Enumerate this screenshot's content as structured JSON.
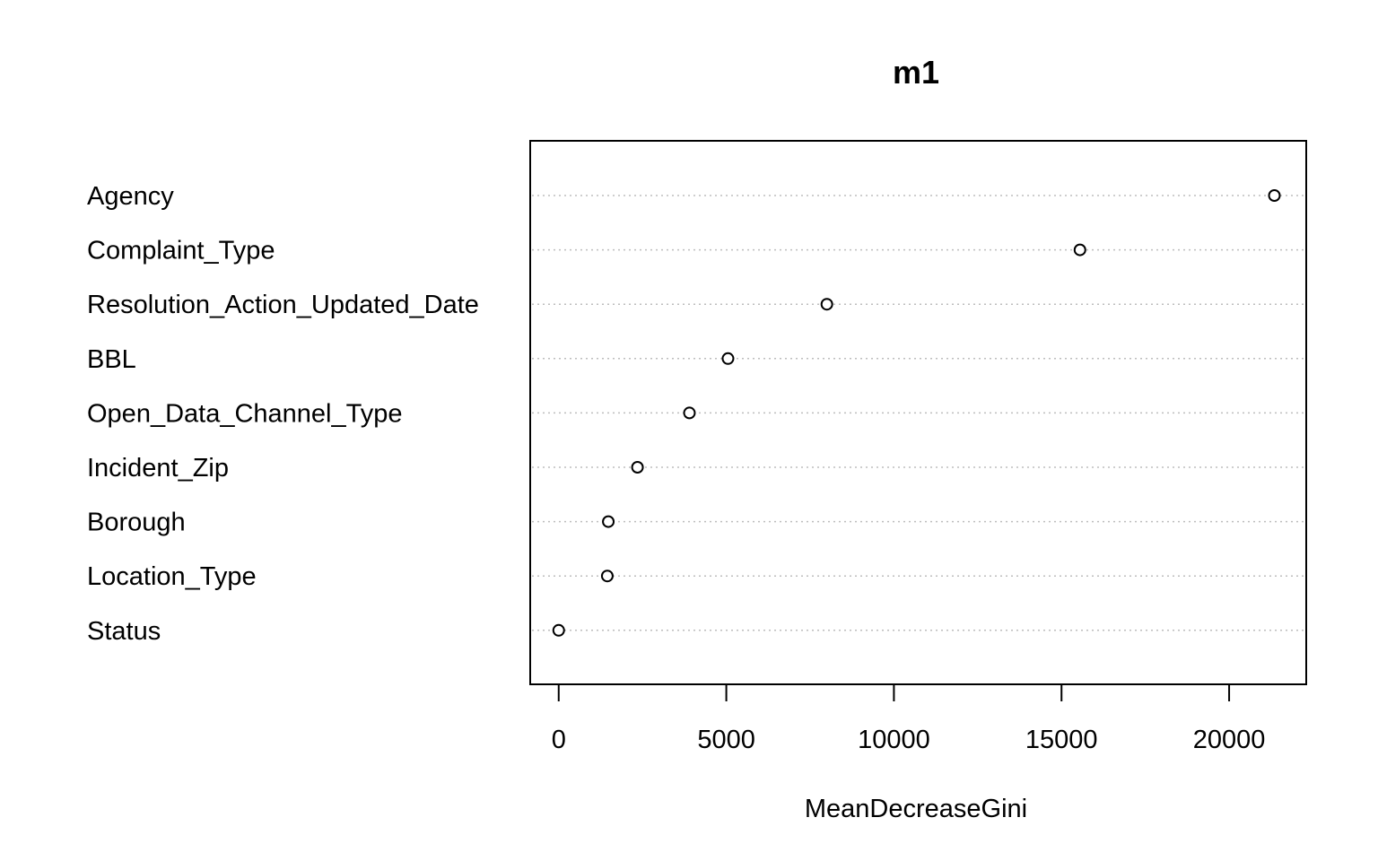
{
  "chart_data": {
    "type": "scatter",
    "title": "m1",
    "xlabel": "MeanDecreaseGini",
    "ylabel": "",
    "xlim": [
      -850,
      22300
    ],
    "xticks": [
      0,
      5000,
      10000,
      15000,
      20000
    ],
    "grid": "dotted horizontal guide lines",
    "marker": "open circle",
    "categories": [
      "Agency",
      "Complaint_Type",
      "Resolution_Action_Updated_Date",
      "BBL",
      "Open_Data_Channel_Type",
      "Incident_Zip",
      "Borough",
      "Location_Type",
      "Status"
    ],
    "values": [
      21350,
      15550,
      8000,
      5050,
      3900,
      2350,
      1480,
      1450,
      0
    ]
  }
}
